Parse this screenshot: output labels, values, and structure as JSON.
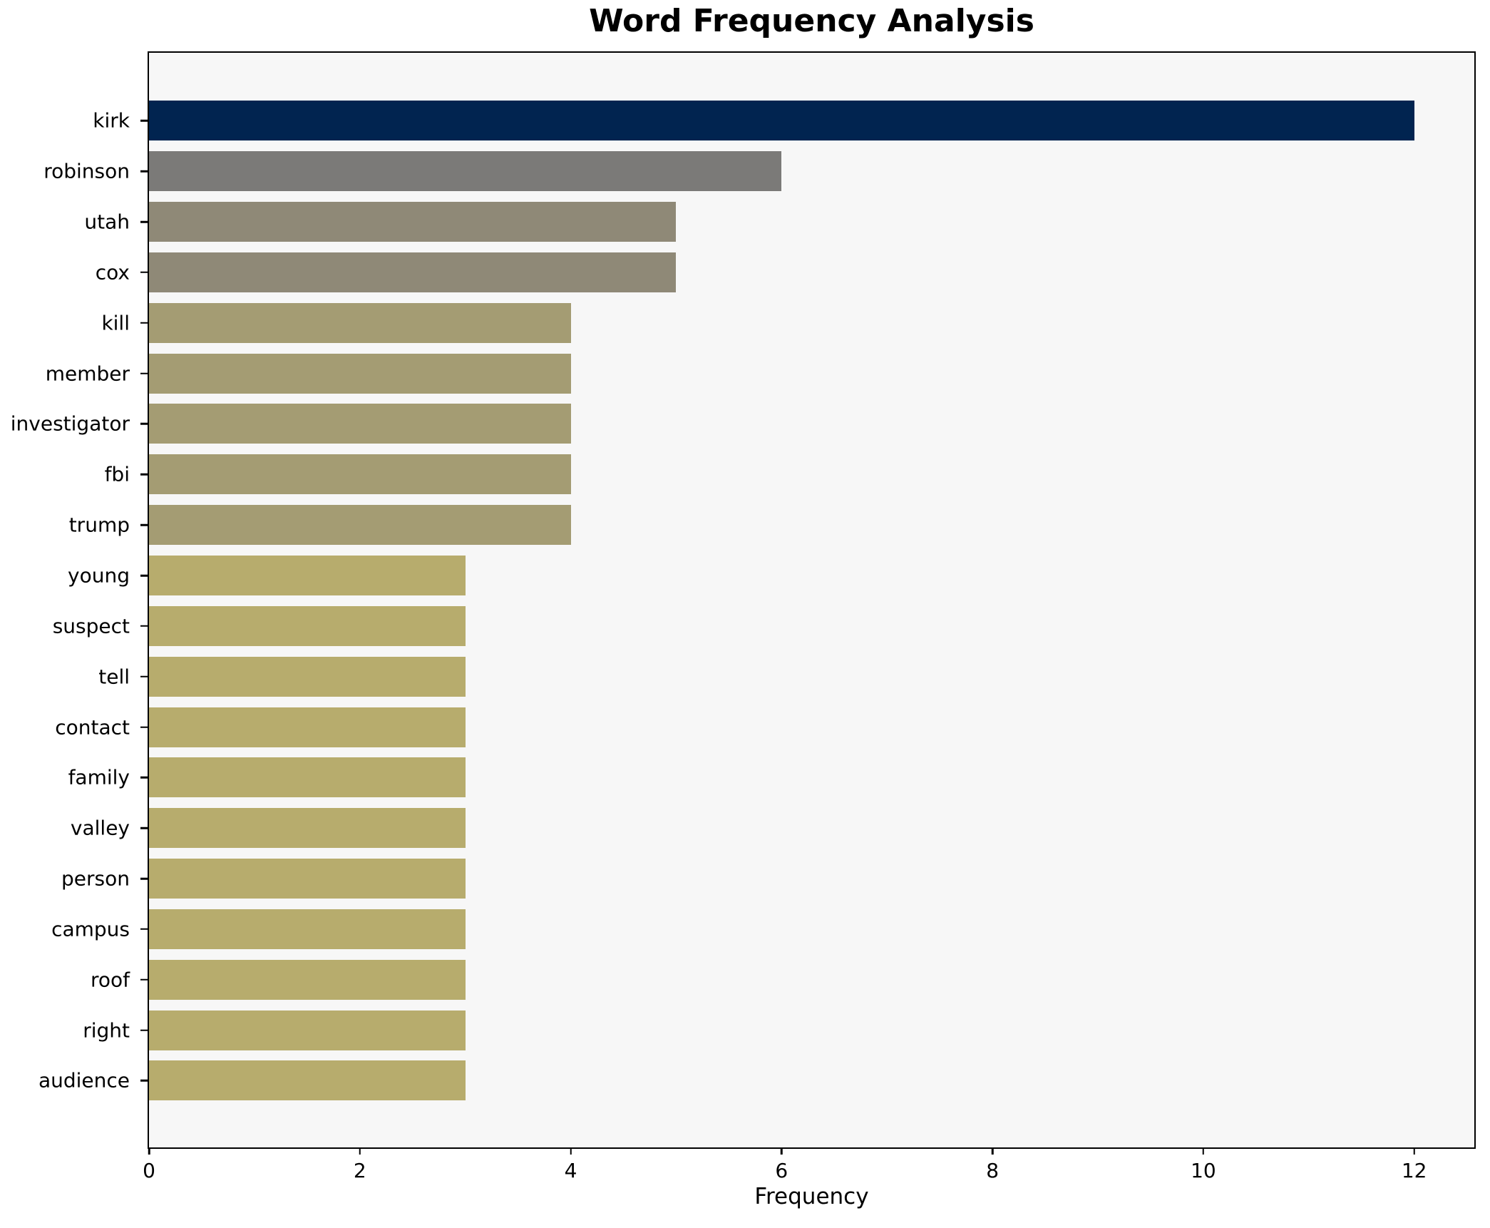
{
  "chart_data": {
    "type": "bar",
    "orientation": "horizontal",
    "title": "Word Frequency Analysis",
    "xlabel": "Frequency",
    "ylabel": "",
    "categories": [
      "kirk",
      "robinson",
      "utah",
      "cox",
      "kill",
      "member",
      "investigator",
      "fbi",
      "trump",
      "young",
      "suspect",
      "tell",
      "contact",
      "family",
      "valley",
      "person",
      "campus",
      "roof",
      "right",
      "audience"
    ],
    "values": [
      12,
      6,
      5,
      5,
      4,
      4,
      4,
      4,
      4,
      3,
      3,
      3,
      3,
      3,
      3,
      3,
      3,
      3,
      3,
      3
    ],
    "colors": [
      "#012450",
      "#7b7a78",
      "#8f8977",
      "#8f8977",
      "#a49c73",
      "#a49c73",
      "#a49c73",
      "#a49c73",
      "#a49c73",
      "#b7ac6d",
      "#b7ac6d",
      "#b7ac6d",
      "#b7ac6d",
      "#b7ac6d",
      "#b7ac6d",
      "#b7ac6d",
      "#b7ac6d",
      "#b7ac6d",
      "#b7ac6d",
      "#b7ac6d"
    ],
    "xlim": [
      0,
      12.57
    ],
    "xticks": [
      0,
      2,
      4,
      6,
      8,
      10,
      12
    ],
    "grid": false,
    "legend_position": "none",
    "plot_background": "#f7f7f7",
    "figure_background": "#ffffff",
    "spine_color": "#000000",
    "bar_height_fraction": 0.8
  }
}
